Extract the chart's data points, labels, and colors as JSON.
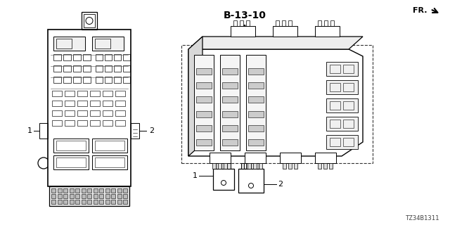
{
  "bg_color": "#ffffff",
  "part_number": "TZ34B1311",
  "reference": "B-13-10",
  "fr_label": "FR.",
  "label1": "1",
  "label2": "2",
  "lw_main": 0.9,
  "lw_detail": 0.5,
  "lw_thin": 0.35
}
